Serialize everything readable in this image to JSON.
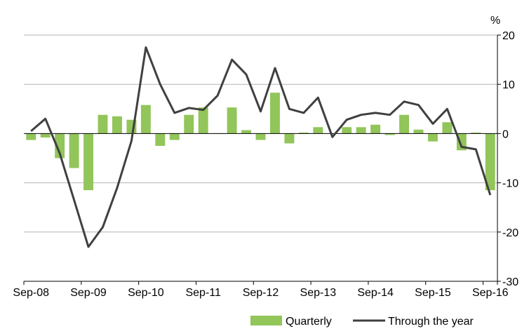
{
  "chart_data": {
    "type": "bar",
    "y_unit": "%",
    "ylim": [
      -30,
      20
    ],
    "y_ticks": [
      20,
      10,
      0,
      -10,
      -20,
      -30
    ],
    "x_tick_labels": [
      "Sep-08",
      "Sep-09",
      "Sep-10",
      "Sep-11",
      "Sep-12",
      "Sep-13",
      "Sep-14",
      "Sep-15",
      "Sep-16"
    ],
    "grid": true,
    "legend_position": "bottom",
    "categories": [
      "Sep-08",
      "Dec-08",
      "Mar-09",
      "Jun-09",
      "Sep-09",
      "Dec-09",
      "Mar-10",
      "Jun-10",
      "Sep-10",
      "Dec-10",
      "Mar-11",
      "Jun-11",
      "Sep-11",
      "Dec-11",
      "Mar-12",
      "Jun-12",
      "Sep-12",
      "Dec-12",
      "Mar-13",
      "Jun-13",
      "Sep-13",
      "Dec-13",
      "Mar-14",
      "Jun-14",
      "Sep-14",
      "Dec-14",
      "Mar-15",
      "Jun-15",
      "Sep-15",
      "Dec-15",
      "Mar-16",
      "Jun-16",
      "Sep-16"
    ],
    "series": [
      {
        "name": "Quarterly",
        "type": "bar",
        "color": "#92c55a",
        "values": [
          -1.3,
          -0.8,
          -5.0,
          -7.0,
          -11.5,
          3.8,
          3.5,
          2.8,
          5.8,
          -2.5,
          -1.3,
          3.8,
          5.3,
          0.0,
          5.3,
          0.7,
          -1.3,
          8.3,
          -2.0,
          0.2,
          1.3,
          0.0,
          1.3,
          1.3,
          1.8,
          -0.3,
          3.8,
          0.8,
          -1.6,
          2.3,
          -3.4,
          0.2,
          -11.5
        ]
      },
      {
        "name": "Through the year",
        "type": "line",
        "color": "#404040",
        "values": [
          0.5,
          3.0,
          -4.0,
          -13.5,
          -23.0,
          -19.0,
          -11.0,
          -1.5,
          17.5,
          10.0,
          4.2,
          5.2,
          4.8,
          7.7,
          15.0,
          12.0,
          4.5,
          13.3,
          5.0,
          4.2,
          7.3,
          -0.7,
          2.8,
          3.8,
          4.2,
          3.8,
          6.5,
          5.8,
          2.0,
          5.0,
          -2.7,
          -3.2,
          -12.5
        ]
      }
    ]
  }
}
